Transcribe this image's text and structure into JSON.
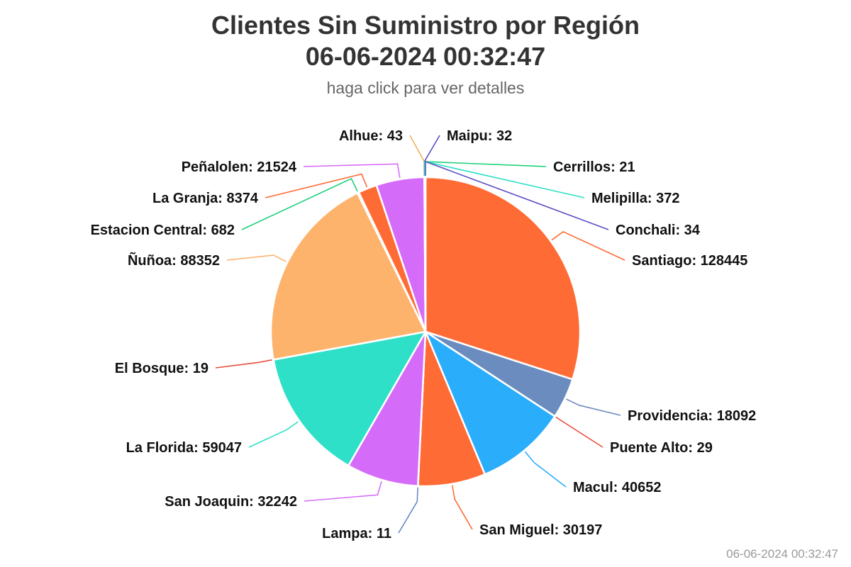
{
  "chart_data": {
    "type": "pie",
    "title": "Clientes Sin Suministro por Región",
    "title_line2": "06-06-2024 00:32:47",
    "subtitle": "haga click para ver detalles",
    "label_format": "{name}: {value}",
    "slices": [
      {
        "name": "Santiago",
        "value": 128445,
        "color": "#ff6b35"
      },
      {
        "name": "Providencia",
        "value": 18092,
        "color": "#6b8cbe"
      },
      {
        "name": "Puente Alto",
        "value": 29,
        "color": "#e74c3c"
      },
      {
        "name": "Macul",
        "value": 40652,
        "color": "#2aaefc"
      },
      {
        "name": "San Miguel",
        "value": 30197,
        "color": "#ff6b35"
      },
      {
        "name": "Lampa",
        "value": 11,
        "color": "#6b8cbe"
      },
      {
        "name": "San Joaquin",
        "value": 32242,
        "color": "#d56cf9"
      },
      {
        "name": "La Florida",
        "value": 59047,
        "color": "#2ee0c8"
      },
      {
        "name": "El Bosque",
        "value": 19,
        "color": "#e74c3c"
      },
      {
        "name": "Ñuñoa",
        "value": 88352,
        "color": "#fdb36c"
      },
      {
        "name": "Estacion Central",
        "value": 682,
        "color": "#1dd17a"
      },
      {
        "name": "La Granja",
        "value": 8374,
        "color": "#ff6b35"
      },
      {
        "name": "Peñalolen",
        "value": 21524,
        "color": "#d56cf9"
      },
      {
        "name": "Alhue",
        "value": 43,
        "color": "#f0b060"
      },
      {
        "name": "Maipu",
        "value": 32,
        "color": "#5b4fc4"
      },
      {
        "name": "Cerrillos",
        "value": 21,
        "color": "#1dd17a"
      },
      {
        "name": "Melipilla",
        "value": 372,
        "color": "#2ee0c8"
      },
      {
        "name": "Conchali",
        "value": 34,
        "color": "#5b4fc4"
      }
    ]
  },
  "footer": {
    "timestamp": "06-06-2024 00:32:47"
  }
}
